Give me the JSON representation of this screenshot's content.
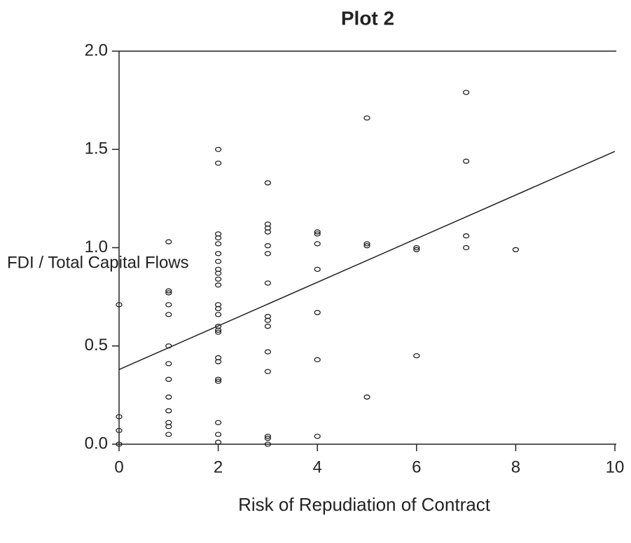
{
  "chart_data": {
    "type": "scatter",
    "title": "Plot 2",
    "xlabel": "Risk of Repudiation of Contract",
    "ylabel": "FDI / Total Capital Flows",
    "x": [
      0,
      0,
      0,
      0,
      1,
      1,
      1,
      1,
      1,
      1,
      1,
      1,
      1,
      1,
      1,
      1,
      1,
      2,
      2,
      2,
      2,
      2,
      2,
      2,
      2,
      2,
      2,
      2,
      2,
      2,
      2,
      2,
      2,
      2,
      2,
      2,
      2,
      2,
      2,
      2,
      2,
      3,
      3,
      3,
      3,
      3,
      3,
      3,
      3,
      3,
      3,
      3,
      3,
      3,
      3,
      3,
      4,
      4,
      4,
      4,
      4,
      4,
      4,
      5,
      5,
      5,
      5,
      6,
      6,
      6,
      7,
      7,
      7,
      7,
      8
    ],
    "y": [
      0.71,
      0.14,
      0.07,
      0.0,
      1.03,
      0.78,
      0.77,
      0.71,
      0.66,
      0.5,
      0.41,
      0.33,
      0.24,
      0.17,
      0.11,
      0.09,
      0.05,
      1.5,
      1.43,
      1.07,
      1.05,
      1.02,
      0.97,
      0.93,
      0.89,
      0.87,
      0.84,
      0.81,
      0.71,
      0.69,
      0.66,
      0.6,
      0.58,
      0.57,
      0.44,
      0.42,
      0.33,
      0.32,
      0.11,
      0.05,
      0.01,
      1.33,
      1.12,
      1.1,
      1.08,
      1.01,
      0.97,
      0.82,
      0.65,
      0.63,
      0.6,
      0.47,
      0.37,
      0.04,
      0.03,
      0.0,
      1.08,
      1.07,
      1.02,
      0.89,
      0.67,
      0.43,
      0.04,
      1.66,
      1.02,
      1.01,
      0.24,
      1.0,
      0.99,
      0.45,
      1.79,
      1.44,
      1.06,
      1.0,
      0.99
    ],
    "color": "#222222",
    "fit": {
      "x": [
        0,
        10
      ],
      "y": [
        0.38,
        1.49
      ]
    },
    "xlim": [
      0,
      10
    ],
    "ylim": [
      0,
      2
    ],
    "xticks": [
      0,
      2,
      4,
      6,
      8,
      10
    ],
    "yticks": [
      {
        "value": 0,
        "label": "0.0"
      },
      {
        "value": 0.5,
        "label": "0.5"
      },
      {
        "value": 1,
        "label": "1.0"
      },
      {
        "value": 1.5,
        "label": "1.5"
      },
      {
        "value": 2,
        "label": "2.0"
      }
    ]
  }
}
